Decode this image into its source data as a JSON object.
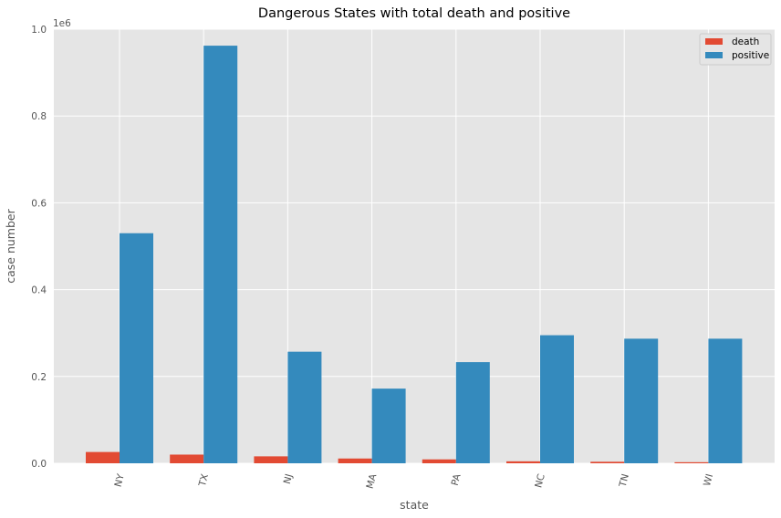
{
  "chart_data": {
    "type": "bar",
    "title": "Dangerous States with total death and positive",
    "xlabel": "state",
    "ylabel": "case number",
    "y_offset_label": "1e6",
    "categories": [
      "NY",
      "TX",
      "NJ",
      "MA",
      "PA",
      "NC",
      "TN",
      "WI"
    ],
    "series": [
      {
        "name": "death",
        "color": "#E24A33",
        "values": [
          26000,
          20000,
          16000,
          11000,
          9000,
          4500,
          3500,
          2500
        ]
      },
      {
        "name": "positive",
        "color": "#348ABD",
        "values": [
          530000,
          962000,
          257000,
          172000,
          233000,
          295000,
          287000,
          287000
        ]
      }
    ],
    "ylim": [
      0,
      1000000
    ],
    "y_ticks": [
      0,
      200000,
      400000,
      600000,
      800000,
      1000000
    ],
    "y_tick_labels": [
      "0.0",
      "0.2",
      "0.4",
      "0.6",
      "0.8",
      "1.0"
    ],
    "grid": true,
    "legend_position": "top-right",
    "background_color": "#E5E5E5"
  }
}
